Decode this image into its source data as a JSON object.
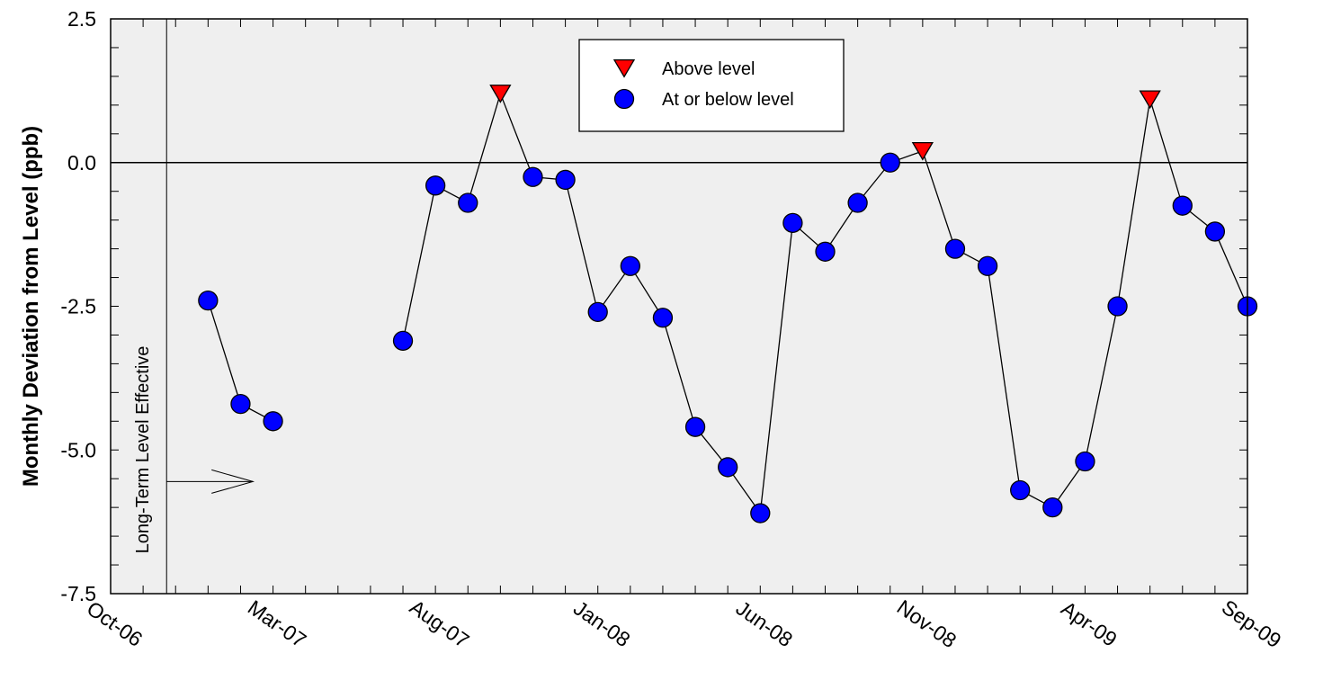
{
  "chart_data": {
    "type": "scatter",
    "title": "",
    "xlabel": "",
    "ylabel": "Monthly Deviation from Level (ppb)",
    "xlim": [
      "2006-10",
      "2009-09"
    ],
    "ylim": [
      -7.5,
      2.5
    ],
    "y_ticks": [
      2.5,
      0.0,
      -2.5,
      -5.0,
      -7.5
    ],
    "y_tick_labels": [
      "2.5",
      "0.0",
      "-2.5",
      "-5.0",
      "-7.5"
    ],
    "x_ticks": [
      "2006-10",
      "2007-03",
      "2007-08",
      "2008-01",
      "2008-06",
      "2008-11",
      "2009-04",
      "2009-09"
    ],
    "x_tick_labels": [
      "Oct-06",
      "Mar-07",
      "Aug-07",
      "Jan-08",
      "Jun-08",
      "Nov-08",
      "Apr-09",
      "Sep-09"
    ],
    "reference_line_y": 0.0,
    "legend_position": "top-center",
    "annotation": {
      "text": "Long-Term Level Effective",
      "date": "2006-12"
    },
    "series": [
      {
        "name": "Above level",
        "marker": "triangle-down",
        "color": "#ff0000",
        "points": [
          {
            "x": "2007-10",
            "y": 1.2
          },
          {
            "x": "2008-11",
            "y": 0.2
          },
          {
            "x": "2009-06",
            "y": 1.1
          }
        ]
      },
      {
        "name": "At or below level",
        "marker": "circle",
        "color": "#0000ff",
        "points": [
          {
            "x": "2007-01",
            "y": -2.4
          },
          {
            "x": "2007-02",
            "y": -4.2
          },
          {
            "x": "2007-03",
            "y": -4.5
          },
          {
            "x": "2007-07",
            "y": -3.1
          },
          {
            "x": "2007-08",
            "y": -0.4
          },
          {
            "x": "2007-09",
            "y": -0.7
          },
          {
            "x": "2007-11",
            "y": -0.25
          },
          {
            "x": "2007-12",
            "y": -0.3
          },
          {
            "x": "2008-01",
            "y": -2.6
          },
          {
            "x": "2008-02",
            "y": -1.8
          },
          {
            "x": "2008-03",
            "y": -2.7
          },
          {
            "x": "2008-04",
            "y": -4.6
          },
          {
            "x": "2008-05",
            "y": -5.3
          },
          {
            "x": "2008-06",
            "y": -6.1
          },
          {
            "x": "2008-07",
            "y": -1.05
          },
          {
            "x": "2008-08",
            "y": -1.55
          },
          {
            "x": "2008-09",
            "y": -0.7
          },
          {
            "x": "2008-10",
            "y": 0.0
          },
          {
            "x": "2008-12",
            "y": -1.5
          },
          {
            "x": "2009-01",
            "y": -1.8
          },
          {
            "x": "2009-02",
            "y": -5.7
          },
          {
            "x": "2009-03",
            "y": -6.0
          },
          {
            "x": "2009-04",
            "y": -5.2
          },
          {
            "x": "2009-05",
            "y": -2.5
          },
          {
            "x": "2009-07",
            "y": -0.75
          },
          {
            "x": "2009-08",
            "y": -1.2
          },
          {
            "x": "2009-09",
            "y": -2.5
          }
        ]
      }
    ],
    "line_segments": [
      [
        "2007-01",
        "2007-02",
        "2007-03"
      ],
      [
        "2007-07",
        "2007-08",
        "2007-09",
        "2007-10",
        "2007-11",
        "2007-12",
        "2008-01",
        "2008-02",
        "2008-03",
        "2008-04",
        "2008-05",
        "2008-06",
        "2008-07",
        "2008-08",
        "2008-09",
        "2008-10",
        "2008-11",
        "2008-12",
        "2009-01",
        "2009-02",
        "2009-03",
        "2009-04",
        "2009-05",
        "2009-06",
        "2009-07",
        "2009-08",
        "2009-09"
      ]
    ],
    "colors": {
      "plot_background": "#efefef",
      "axis": "#000000",
      "line": "#000000"
    }
  }
}
